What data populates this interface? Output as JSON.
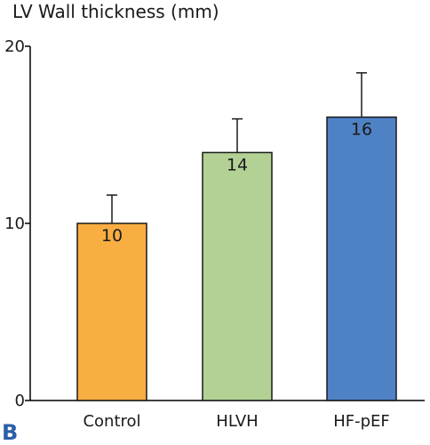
{
  "panel_label": "B",
  "chart_data": {
    "type": "bar",
    "title": "LV Wall thickness (mm)",
    "xlabel": "",
    "ylabel": "",
    "categories": [
      "Control",
      "HLVH",
      "HF-pEF"
    ],
    "values": [
      10,
      14,
      16
    ],
    "error_upper": [
      11.6,
      15.9,
      18.5
    ],
    "value_labels": [
      "10",
      "14",
      "16"
    ],
    "colors": [
      "#F9AE42",
      "#B4D195",
      "#4F81C5"
    ],
    "ylim": [
      0,
      20
    ],
    "yticks": [
      0,
      10,
      20
    ],
    "ytick_labels": [
      "0",
      "10",
      "20"
    ],
    "grid": false,
    "legend": "none"
  }
}
